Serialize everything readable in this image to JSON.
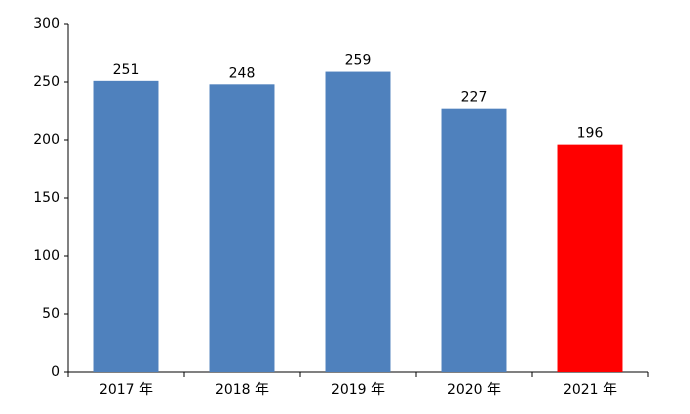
{
  "chart_data": {
    "type": "bar",
    "categories": [
      "2017 年",
      "2018 年",
      "2019 年",
      "2020 年",
      "2021 年"
    ],
    "values": [
      251,
      248,
      259,
      227,
      196
    ],
    "colors": [
      "#4f81bd",
      "#4f81bd",
      "#4f81bd",
      "#4f81bd",
      "#ff0000"
    ],
    "ylim": [
      0,
      300
    ],
    "yticks": [
      0,
      50,
      100,
      150,
      200,
      250,
      300
    ],
    "grid": false
  }
}
